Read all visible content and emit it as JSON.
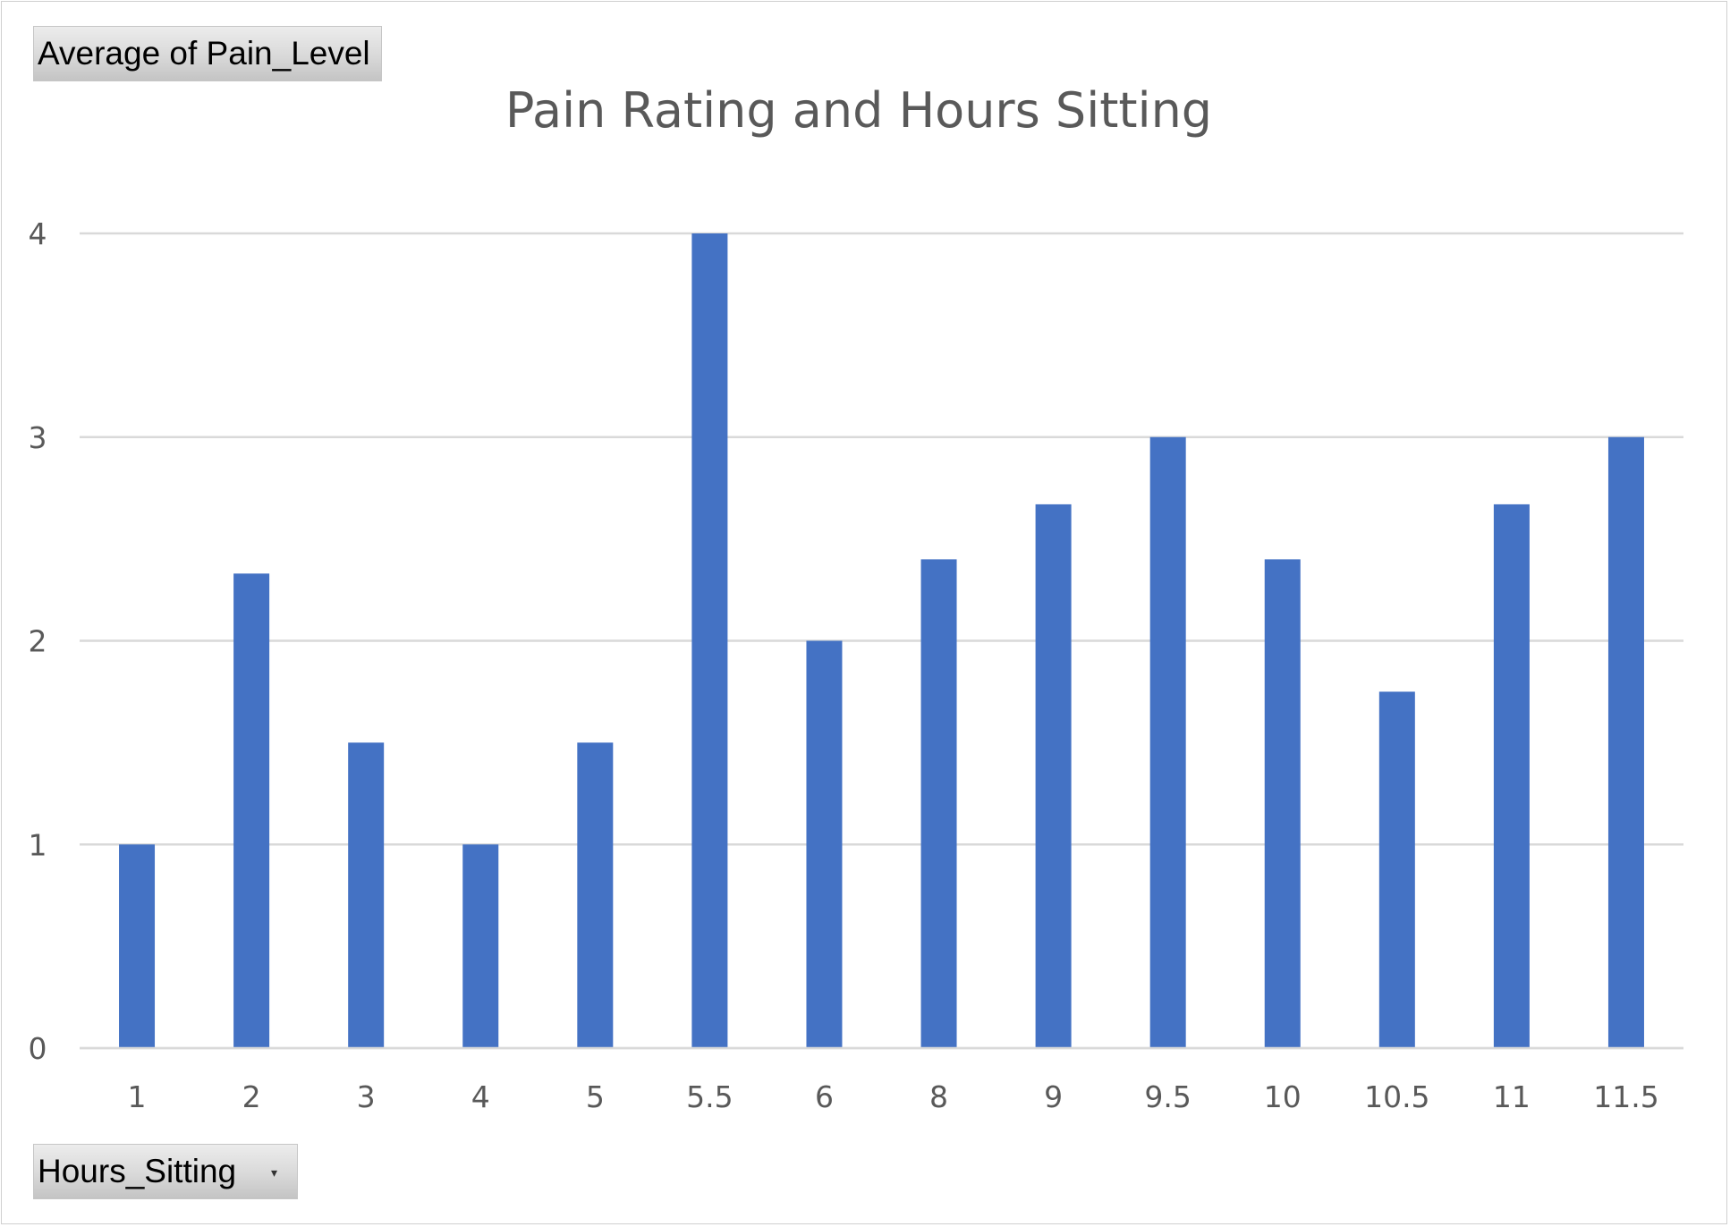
{
  "chart_data": {
    "type": "bar",
    "title": "Pain Rating and Hours Sitting",
    "value_field_label": "Average  of Pain_Level",
    "axis_field_label": "Hours_Sitting",
    "axis_field_dropdown_icon": "dropdown-arrow-icon",
    "categories": [
      "1",
      "2",
      "3",
      "4",
      "5",
      "5.5",
      "6",
      "8",
      "9",
      "9.5",
      "10",
      "10.5",
      "11",
      "11.5"
    ],
    "values": [
      1,
      2.33,
      1.5,
      1,
      1.5,
      4,
      2,
      2.4,
      2.67,
      3,
      2.4,
      1.75,
      2.67,
      3
    ],
    "ylim": [
      0,
      4
    ],
    "yticks": [
      "0",
      "1",
      "2",
      "3",
      "4"
    ],
    "grid": true,
    "legend": "none",
    "colors": {
      "bar": "#4472c4",
      "grid": "#d9d9d9",
      "text": "#595959"
    }
  }
}
